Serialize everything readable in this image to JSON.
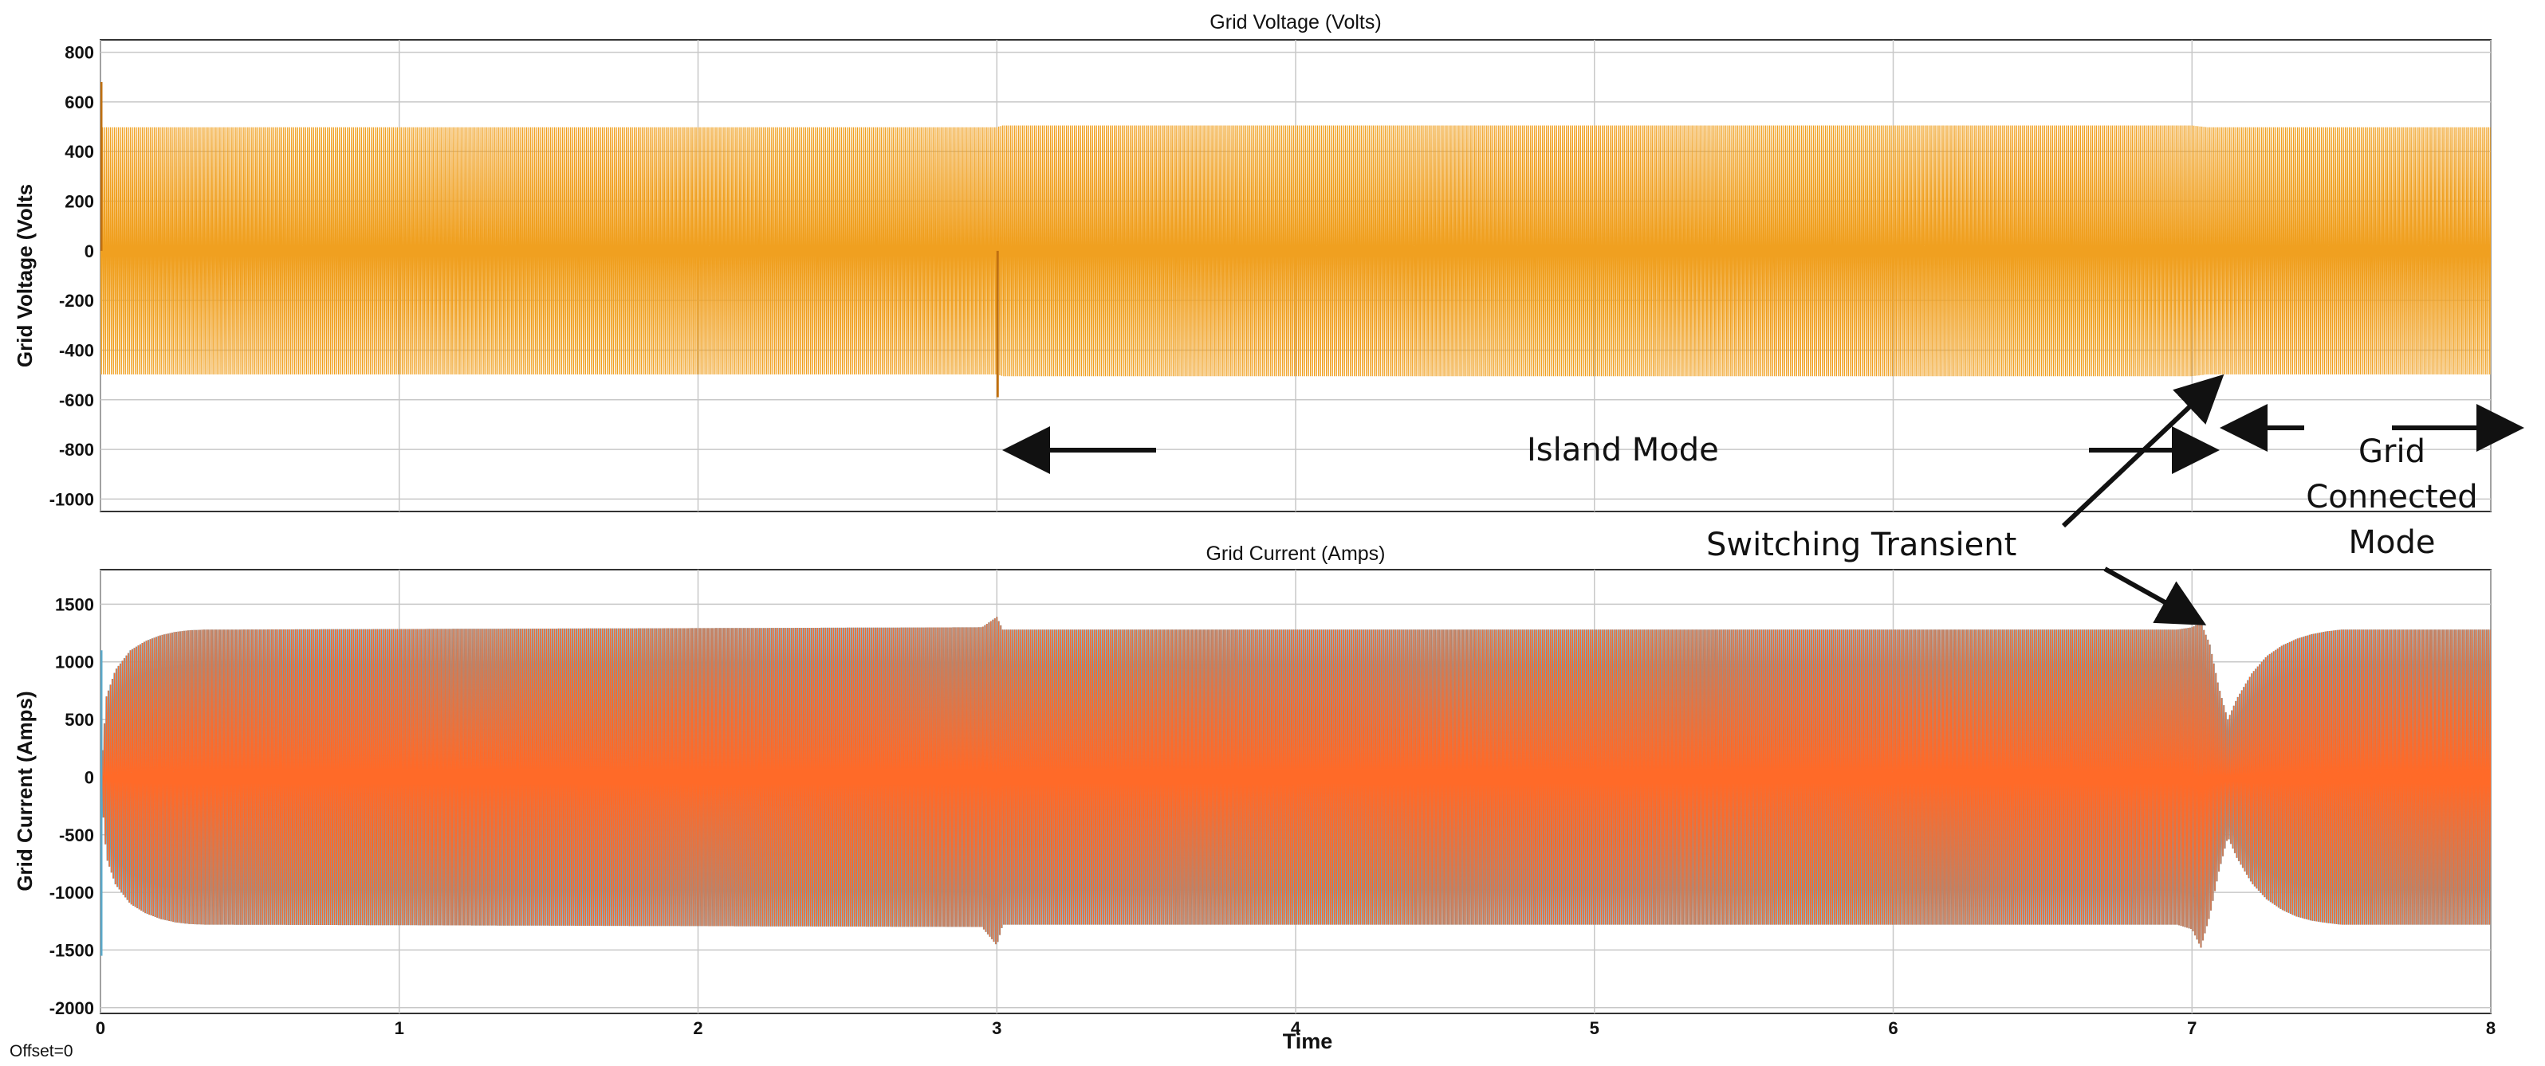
{
  "chart_data": [
    {
      "type": "line",
      "title": "Grid Voltage (Volts)",
      "ylabel": "Grid Voltage (Volts",
      "xlabel": "",
      "xlim": [
        0,
        8
      ],
      "ylim": [
        -1050,
        850
      ],
      "yticks": [
        800,
        600,
        400,
        200,
        0,
        -200,
        -400,
        -600,
        -800,
        -1000
      ],
      "xticks": [
        0,
        1,
        2,
        3,
        4,
        5,
        6,
        7,
        8
      ],
      "grid": true,
      "color": "#f0a020",
      "envelope": {
        "t": [
          0,
          2.99,
          3.0,
          3.02,
          6.99,
          7.0,
          7.05,
          8.0
        ],
        "upper": [
          498,
          498,
          498,
          505,
          505,
          505,
          498,
          498
        ],
        "lower": [
          -498,
          -498,
          -498,
          -505,
          -505,
          -505,
          -498,
          -498
        ]
      },
      "spikes": [
        {
          "t": 0.0,
          "value": 680
        },
        {
          "t": 3.0,
          "value": -590
        }
      ]
    },
    {
      "type": "line",
      "title": "Grid Current (Amps)",
      "ylabel": "Grid Current (Amps)",
      "xlabel": "Time",
      "xlim": [
        0,
        8
      ],
      "ylim": [
        -2050,
        1800
      ],
      "yticks": [
        1500,
        1000,
        500,
        0,
        -500,
        -1000,
        -1500,
        -2000
      ],
      "xticks": [
        0,
        1,
        2,
        3,
        4,
        5,
        6,
        7,
        8
      ],
      "grid": true,
      "color": "#ff6a28",
      "edge_color": "#5aa8c8",
      "envelope": {
        "t": [
          0,
          0.02,
          0.05,
          0.1,
          0.15,
          0.2,
          0.25,
          0.3,
          0.35,
          0.4,
          2.95,
          3.0,
          3.02,
          6.95,
          7.0,
          7.03,
          7.06,
          7.09,
          7.12,
          7.15,
          7.2,
          7.25,
          7.3,
          7.35,
          7.4,
          7.45,
          7.5,
          8.0
        ],
        "upper": [
          0,
          700,
          930,
          1100,
          1180,
          1230,
          1260,
          1275,
          1280,
          1280,
          1300,
          1390,
          1280,
          1280,
          1300,
          1340,
          1150,
          780,
          500,
          680,
          900,
          1050,
          1140,
          1200,
          1240,
          1265,
          1280,
          1280
        ],
        "lower": [
          0,
          -700,
          -930,
          -1100,
          -1180,
          -1230,
          -1260,
          -1275,
          -1280,
          -1280,
          -1300,
          -1460,
          -1280,
          -1280,
          -1320,
          -1480,
          -1200,
          -820,
          -520,
          -700,
          -920,
          -1060,
          -1150,
          -1210,
          -1245,
          -1265,
          -1280,
          -1280
        ]
      },
      "spikes": [
        {
          "t": 0.0,
          "value": -1550
        },
        {
          "t": 0.0,
          "value": 1100
        }
      ]
    }
  ],
  "annotations": {
    "island_mode": "Island Mode",
    "grid_connected_line1": "Grid",
    "grid_connected_line2": "Connected",
    "grid_connected_line3": "Mode",
    "switching_transient": "Switching Transient"
  },
  "footer": {
    "offset": "Offset=0"
  }
}
